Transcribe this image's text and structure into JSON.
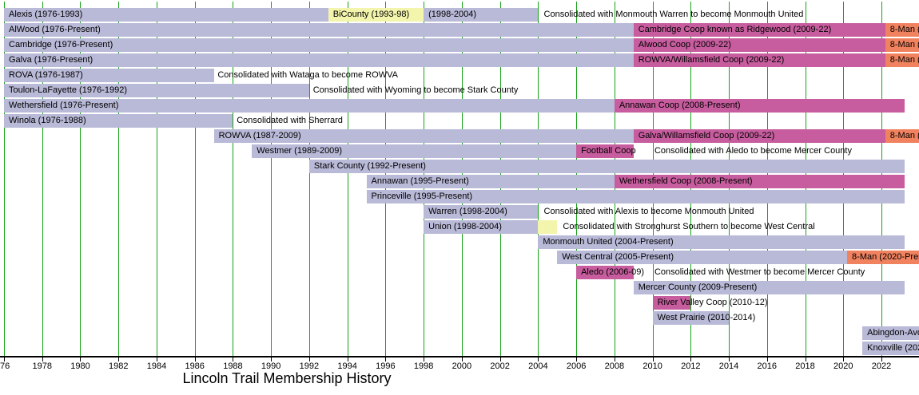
{
  "chart_data": {
    "type": "bar",
    "variant": "gantt-timeline",
    "title": "Lincoln Trail Membership History",
    "xlabel": "",
    "ylabel": "",
    "xlim": [
      1976,
      2024
    ],
    "grid": true,
    "legend": false,
    "present_year": 2023.2,
    "colors": {
      "member": "#b9b9d8",
      "coop": "#c75d9e",
      "eightman": "#f1825f",
      "merger": "#f3f5ad",
      "gridline": "#17a317",
      "axis": "#000000"
    },
    "x_axis": {
      "ticks": [
        {
          "year": 1976,
          "label": "76",
          "align": "left"
        },
        {
          "year": 1978,
          "label": "1978"
        },
        {
          "year": 1980,
          "label": "1980"
        },
        {
          "year": 1982,
          "label": "1982"
        },
        {
          "year": 1984,
          "label": "1984"
        },
        {
          "year": 1986,
          "label": "1986"
        },
        {
          "year": 1988,
          "label": "1988"
        },
        {
          "year": 1990,
          "label": "1990"
        },
        {
          "year": 1992,
          "label": "1992"
        },
        {
          "year": 1994,
          "label": "1994"
        },
        {
          "year": 1996,
          "label": "1996"
        },
        {
          "year": 1998,
          "label": "1998"
        },
        {
          "year": 2000,
          "label": "2000"
        },
        {
          "year": 2002,
          "label": "2002"
        },
        {
          "year": 2004,
          "label": "2004"
        },
        {
          "year": 2006,
          "label": "2006"
        },
        {
          "year": 2008,
          "label": "2008"
        },
        {
          "year": 2010,
          "label": "2010"
        },
        {
          "year": 2012,
          "label": "2012"
        },
        {
          "year": 2014,
          "label": "2014"
        },
        {
          "year": 2016,
          "label": "2016"
        },
        {
          "year": 2018,
          "label": "2018"
        },
        {
          "year": 2020,
          "label": "2020"
        },
        {
          "year": 2022,
          "label": "2022"
        }
      ]
    },
    "rows": [
      {
        "id": "alexis",
        "segments": [
          {
            "label": "Alexis (1976-1993)",
            "start": 1976,
            "end": 1993,
            "type": "member"
          },
          {
            "label": "BiCounty (1993-98)",
            "start": 1993,
            "end": 1998,
            "type": "merger"
          },
          {
            "label": "(1998-2004)",
            "start": 1998,
            "end": 2004,
            "type": "member"
          }
        ],
        "notes": [
          {
            "text": "Consolidated with Monmouth Warren to become Monmouth United",
            "at": 2004.3
          }
        ]
      },
      {
        "id": "alwood",
        "segments": [
          {
            "label": "AlWood (1976-Present)",
            "start": 1976,
            "end": 2009,
            "type": "member"
          },
          {
            "label": "Cambridge Coop known as Ridgewood (2009-22)",
            "start": 2009,
            "end": 2022.2,
            "type": "coop"
          },
          {
            "label": "8-Man (2",
            "start": 2022.2,
            "end": 2024,
            "type": "eightman"
          }
        ],
        "notes": []
      },
      {
        "id": "cambridge",
        "segments": [
          {
            "label": "Cambridge (1976-Present)",
            "start": 1976,
            "end": 2009,
            "type": "member"
          },
          {
            "label": "Alwood Coop (2009-22)",
            "start": 2009,
            "end": 2022.2,
            "type": "coop"
          },
          {
            "label": "8-Man (2",
            "start": 2022.2,
            "end": 2024,
            "type": "eightman"
          }
        ],
        "notes": []
      },
      {
        "id": "galva",
        "segments": [
          {
            "label": "Galva (1976-Present)",
            "start": 1976,
            "end": 2009,
            "type": "member"
          },
          {
            "label": "ROWVA/Willamsfield Coop (2009-22)",
            "start": 2009,
            "end": 2022.2,
            "type": "coop"
          },
          {
            "label": "8-Man (2",
            "start": 2022.2,
            "end": 2024,
            "type": "eightman"
          }
        ],
        "notes": []
      },
      {
        "id": "rova",
        "segments": [
          {
            "label": "ROVA (1976-1987)",
            "start": 1976,
            "end": 1987,
            "type": "member"
          }
        ],
        "notes": [
          {
            "text": "Consolidated with Wataga to become ROWVA",
            "at": 1987.2
          }
        ]
      },
      {
        "id": "toulon-lafayette",
        "segments": [
          {
            "label": "Toulon-LaFayette (1976-1992)",
            "start": 1976,
            "end": 1992,
            "type": "member"
          }
        ],
        "notes": [
          {
            "text": "Consolidated with Wyoming to become Stark County",
            "at": 1992.2
          }
        ]
      },
      {
        "id": "wethersfield",
        "segments": [
          {
            "label": "Wethersfield (1976-Present)",
            "start": 1976,
            "end": 2008,
            "type": "member"
          },
          {
            "label": "Annawan Coop (2008-Present)",
            "start": 2008,
            "end": 2023.2,
            "type": "coop"
          }
        ],
        "notes": []
      },
      {
        "id": "winola",
        "segments": [
          {
            "label": "Winola (1976-1988)",
            "start": 1976,
            "end": 1988,
            "type": "member"
          }
        ],
        "notes": [
          {
            "text": "Consolidated with Sherrard",
            "at": 1988.2
          }
        ]
      },
      {
        "id": "rowva",
        "segments": [
          {
            "label": "ROWVA (1987-2009)",
            "start": 1987,
            "end": 2009,
            "type": "member"
          },
          {
            "label": "Galva/Willamsfield Coop (2009-22)",
            "start": 2009,
            "end": 2022.2,
            "type": "coop"
          },
          {
            "label": "8-Man (2",
            "start": 2022.2,
            "end": 2024,
            "type": "eightman"
          }
        ],
        "notes": []
      },
      {
        "id": "westmer",
        "segments": [
          {
            "label": "Westmer (1989-2009)",
            "start": 1989,
            "end": 2006,
            "type": "member"
          },
          {
            "label": "Football Coop",
            "start": 2006,
            "end": 2009,
            "type": "coop"
          }
        ],
        "notes": [
          {
            "text": "Consolidated with Aledo to become Mercer County",
            "at": 2010.1
          }
        ]
      },
      {
        "id": "stark-county",
        "segments": [
          {
            "label": "Stark County (1992-Present)",
            "start": 1992,
            "end": 2023.2,
            "type": "member"
          }
        ],
        "notes": []
      },
      {
        "id": "annawan",
        "segments": [
          {
            "label": "Annawan (1995-Present)",
            "start": 1995,
            "end": 2008,
            "type": "member"
          },
          {
            "label": "Wethersfield Coop (2008-Present)",
            "start": 2008,
            "end": 2023.2,
            "type": "coop"
          }
        ],
        "notes": []
      },
      {
        "id": "princeville",
        "segments": [
          {
            "label": "Princeville (1995-Present)",
            "start": 1995,
            "end": 2023.2,
            "type": "member"
          }
        ],
        "notes": []
      },
      {
        "id": "warren",
        "segments": [
          {
            "label": "Warren (1998-2004)",
            "start": 1998,
            "end": 2004,
            "type": "member"
          }
        ],
        "notes": [
          {
            "text": "Consolidated with Alexis to become Monmouth United",
            "at": 2004.3
          }
        ]
      },
      {
        "id": "union",
        "segments": [
          {
            "label": "Union (1998-2004)",
            "start": 1998,
            "end": 2004,
            "type": "member"
          },
          {
            "label": "",
            "start": 2004,
            "end": 2005,
            "type": "merger"
          }
        ],
        "notes": [
          {
            "text": "Consolidated with Stronghurst Southern to become West Central",
            "at": 2005.3
          }
        ]
      },
      {
        "id": "monmouth-united",
        "segments": [
          {
            "label": "Monmouth United (2004-Present)",
            "start": 2004,
            "end": 2023.2,
            "type": "member"
          }
        ],
        "notes": []
      },
      {
        "id": "west-central",
        "segments": [
          {
            "label": "West Central (2005-Present)",
            "start": 2005,
            "end": 2020.2,
            "type": "member"
          },
          {
            "label": "8-Man (2020-Prese",
            "start": 2020.2,
            "end": 2024,
            "type": "eightman"
          }
        ],
        "notes": []
      },
      {
        "id": "aledo",
        "segments": [
          {
            "label": "Aledo (2006-09)",
            "start": 2006,
            "end": 2009,
            "type": "coop"
          }
        ],
        "notes": [
          {
            "text": "Consolidated with Westmer to become Mercer County",
            "at": 2010.1
          }
        ]
      },
      {
        "id": "mercer-county",
        "segments": [
          {
            "label": "Mercer County (2009-Present)",
            "start": 2009,
            "end": 2023.2,
            "type": "member"
          }
        ],
        "notes": []
      },
      {
        "id": "river-valley",
        "segments": [
          {
            "label": "River Valley Coop (2010-12)",
            "start": 2010,
            "end": 2012,
            "type": "coop"
          }
        ],
        "notes": []
      },
      {
        "id": "west-prairie",
        "segments": [
          {
            "label": "West Prairie (2010-2014)",
            "start": 2010,
            "end": 2014,
            "type": "member"
          }
        ],
        "notes": []
      },
      {
        "id": "abingdon-avon",
        "segments": [
          {
            "label": "Abingdon-Avo",
            "start": 2021,
            "end": 2024,
            "type": "member"
          }
        ],
        "notes": []
      },
      {
        "id": "knoxville",
        "segments": [
          {
            "label": "Knoxville (202",
            "start": 2021,
            "end": 2024,
            "type": "member"
          }
        ],
        "notes": []
      }
    ]
  }
}
